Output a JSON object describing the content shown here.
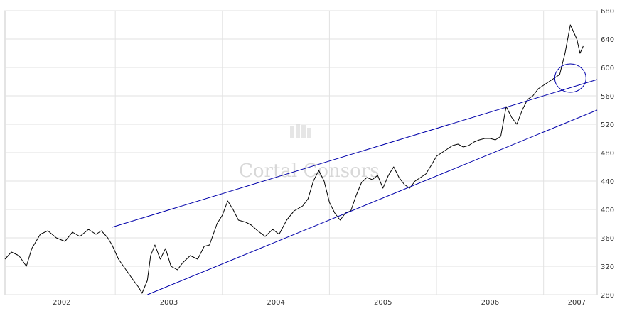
{
  "chart_data": {
    "type": "line",
    "watermark": "Cortal Consors",
    "x_tick_labels": [
      "2002",
      "2003",
      "2004",
      "2005",
      "2006",
      "2007"
    ],
    "x_ticks": [
      2002.25,
      2003.25,
      2004.25,
      2005.25,
      2006.25,
      2007.06
    ],
    "x_year_boundaries": [
      2002.75,
      2003.75,
      2004.75,
      2005.75,
      2006.75
    ],
    "xlim": [
      2001.72,
      2007.25
    ],
    "y_ticks": [
      280,
      320,
      360,
      400,
      440,
      480,
      520,
      560,
      600,
      640,
      680
    ],
    "ylim": [
      280,
      680
    ],
    "grid": true,
    "axis_side": "right",
    "series": [
      {
        "color": "#000000",
        "x": [
          2001.72,
          2001.78,
          2001.85,
          2001.92,
          2001.97,
          2002.05,
          2002.12,
          2002.2,
          2002.28,
          2002.35,
          2002.42,
          2002.5,
          2002.57,
          2002.62,
          2002.68,
          2002.72,
          2002.78,
          2002.85,
          2002.92,
          2002.97,
          2003.0,
          2003.05,
          2003.08,
          2003.12,
          2003.17,
          2003.22,
          2003.27,
          2003.33,
          2003.38,
          2003.45,
          2003.52,
          2003.58,
          2003.63,
          2003.7,
          2003.75,
          2003.8,
          2003.85,
          2003.9,
          2003.97,
          2004.02,
          2004.08,
          2004.15,
          2004.22,
          2004.28,
          2004.35,
          2004.42,
          2004.5,
          2004.55,
          2004.6,
          2004.65,
          2004.7,
          2004.75,
          2004.8,
          2004.85,
          2004.9,
          2004.95,
          2005.0,
          2005.05,
          2005.1,
          2005.15,
          2005.2,
          2005.25,
          2005.3,
          2005.35,
          2005.4,
          2005.45,
          2005.5,
          2005.55,
          2005.6,
          2005.65,
          2005.7,
          2005.75,
          2005.8,
          2005.85,
          2005.9,
          2005.95,
          2006.0,
          2006.05,
          2006.1,
          2006.15,
          2006.2,
          2006.25,
          2006.3,
          2006.35,
          2006.4,
          2006.45,
          2006.5,
          2006.55,
          2006.6,
          2006.65,
          2006.7,
          2006.75,
          2006.8,
          2006.85,
          2006.9,
          2006.95,
          2007.0,
          2007.03,
          2007.06,
          2007.09,
          2007.12
        ],
        "y": [
          330,
          340,
          335,
          320,
          345,
          365,
          370,
          360,
          355,
          368,
          362,
          372,
          365,
          370,
          360,
          350,
          330,
          315,
          300,
          290,
          282,
          300,
          335,
          350,
          330,
          345,
          320,
          315,
          325,
          335,
          330,
          348,
          350,
          380,
          392,
          412,
          400,
          385,
          382,
          378,
          370,
          362,
          372,
          365,
          385,
          398,
          405,
          415,
          440,
          455,
          440,
          410,
          395,
          385,
          395,
          398,
          420,
          438,
          445,
          442,
          448,
          430,
          448,
          460,
          445,
          435,
          430,
          440,
          445,
          450,
          462,
          475,
          480,
          485,
          490,
          492,
          488,
          490,
          495,
          498,
          500,
          500,
          498,
          503,
          545,
          530,
          520,
          540,
          555,
          560,
          570,
          575,
          580,
          585,
          590,
          620,
          660,
          650,
          640,
          620,
          630
        ]
      }
    ],
    "trendlines": [
      {
        "color": "#0000aa",
        "x": [
          2002.72,
          2007.25
        ],
        "y": [
          375,
          583
        ]
      },
      {
        "color": "#0000aa",
        "x": [
          2003.05,
          2007.25
        ],
        "y": [
          280,
          540
        ]
      }
    ],
    "annotation": {
      "shape": "circle",
      "color": "#0000aa",
      "x": 2007.0,
      "y": 585
    }
  }
}
